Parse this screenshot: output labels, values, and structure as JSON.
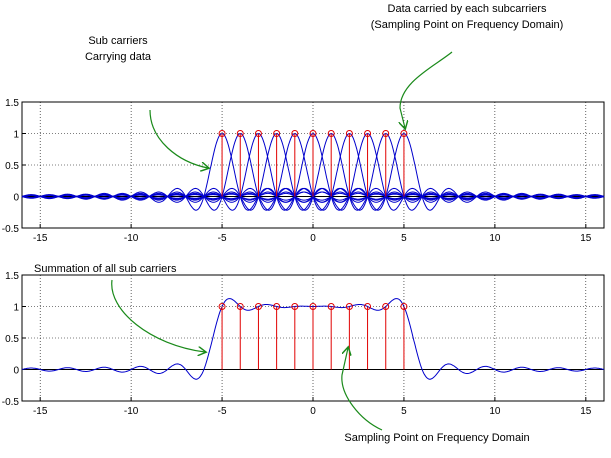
{
  "chart_data": [
    {
      "type": "line",
      "title": "",
      "xlabel": "",
      "ylabel": "",
      "xlim": [
        -16,
        16
      ],
      "ylim": [
        -0.5,
        1.5
      ],
      "xticks": [
        "-15",
        "-10",
        "-5",
        "0",
        "5",
        "10",
        "15"
      ],
      "yticks": [
        "1.5",
        "1",
        "0.5",
        "0",
        "-0.5"
      ],
      "grid": true,
      "carrier_shape": "sinc",
      "subcarrier_centers": [
        -5,
        -4,
        -3,
        -2,
        -1,
        0,
        1,
        2,
        3,
        4,
        5
      ],
      "sample_points": {
        "x": [
          -5,
          -4,
          -3,
          -2,
          -1,
          0,
          1,
          2,
          3,
          4,
          5
        ],
        "y": [
          1,
          1,
          1,
          1,
          1,
          1,
          1,
          1,
          1,
          1,
          1
        ]
      },
      "line_color": "#0000cc",
      "stem_color": "#e00000",
      "annotations": [
        {
          "lines": [
            "Sub carriers",
            "Carrying data"
          ],
          "points_to": [
            -5.3,
            0.5
          ]
        },
        {
          "lines": [
            "Data carried by each subcarriers",
            "(Sampling Point on Frequency Domain)"
          ],
          "points_to": [
            5,
            1
          ]
        }
      ]
    },
    {
      "type": "line",
      "title": "",
      "xlabel": "",
      "ylabel": "",
      "xlim": [
        -16,
        16
      ],
      "ylim": [
        -0.5,
        1.5
      ],
      "xticks": [
        "-15",
        "-10",
        "-5",
        "0",
        "5",
        "10",
        "15"
      ],
      "yticks": [
        "1.5",
        "1",
        "0.5",
        "0",
        "-0.5"
      ],
      "grid": true,
      "carrier_shape": "sum of sinc",
      "subcarrier_centers": [
        -5,
        -4,
        -3,
        -2,
        -1,
        0,
        1,
        2,
        3,
        4,
        5
      ],
      "sample_points": {
        "x": [
          -5,
          -4,
          -3,
          -2,
          -1,
          0,
          1,
          2,
          3,
          4,
          5
        ],
        "y": [
          1,
          1,
          1,
          1,
          1,
          1,
          1,
          1,
          1,
          1,
          1
        ]
      },
      "line_color": "#0000cc",
      "stem_color": "#e00000",
      "annotations": [
        {
          "lines": [
            "Summation of all sub carriers"
          ],
          "points_to": [
            -5.8,
            0.25
          ]
        },
        {
          "lines": [
            "Sampling Point on Frequency Domain"
          ],
          "points_to": [
            2,
            0.35
          ]
        }
      ]
    }
  ]
}
